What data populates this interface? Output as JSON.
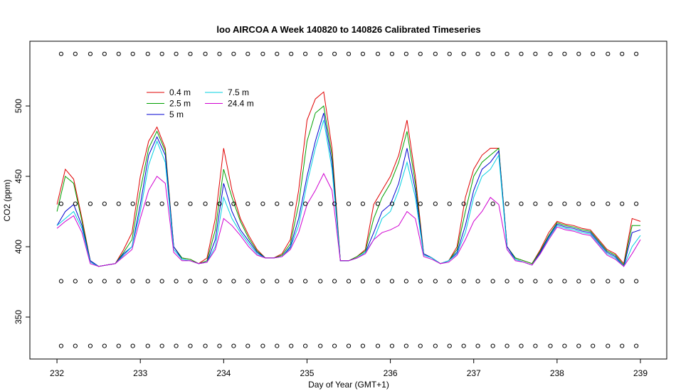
{
  "chart_data": {
    "type": "line",
    "title": "loo AIRCOA A  Week 140820 to 140826  Calibrated Timeseries",
    "x_label": "Day of Year (GMT+1)",
    "y_label": "CO2 (ppm)",
    "xlim": [
      231.675,
      239.316
    ],
    "ylim": [
      320.2,
      546
    ],
    "xticks": [
      232,
      233,
      234,
      235,
      236,
      237,
      238,
      239
    ],
    "yticks": [
      350,
      400,
      450,
      500
    ],
    "legend_ncol": 2,
    "x": [
      232.0,
      232.1,
      232.2,
      232.3,
      232.4,
      232.5,
      232.6,
      232.7,
      232.8,
      232.9,
      233.0,
      233.1,
      233.2,
      233.3,
      233.4,
      233.5,
      233.6,
      233.7,
      233.8,
      233.9,
      234.0,
      234.1,
      234.2,
      234.3,
      234.4,
      234.5,
      234.6,
      234.7,
      234.8,
      234.9,
      235.0,
      235.1,
      235.2,
      235.3,
      235.4,
      235.5,
      235.6,
      235.7,
      235.8,
      235.9,
      236.0,
      236.1,
      236.2,
      236.3,
      236.4,
      236.5,
      236.6,
      236.7,
      236.8,
      236.9,
      237.0,
      237.1,
      237.2,
      237.3,
      237.4,
      237.5,
      237.6,
      237.7,
      237.8,
      237.9,
      238.0,
      238.1,
      238.2,
      238.3,
      238.4,
      238.5,
      238.6,
      238.7,
      238.8,
      238.9,
      239.0
    ],
    "series": [
      {
        "name": "0.4 m",
        "color": "#e00000",
        "values": [
          430,
          455,
          448,
          420,
          390,
          386,
          387,
          388,
          398,
          410,
          450,
          475,
          485,
          470,
          400,
          392,
          391,
          388,
          392,
          420,
          470,
          440,
          420,
          408,
          398,
          392,
          392,
          395,
          405,
          440,
          490,
          505,
          510,
          470,
          390,
          390,
          393,
          398,
          430,
          440,
          450,
          465,
          490,
          450,
          395,
          392,
          388,
          390,
          400,
          435,
          455,
          465,
          470,
          470,
          400,
          392,
          390,
          388,
          398,
          410,
          418,
          416,
          415,
          413,
          412,
          405,
          398,
          395,
          388,
          420,
          418
        ]
      },
      {
        "name": "2.5 m",
        "color": "#00a000",
        "values": [
          425,
          450,
          445,
          418,
          390,
          386,
          387,
          388,
          396,
          405,
          440,
          470,
          482,
          468,
          400,
          392,
          391,
          388,
          390,
          412,
          455,
          435,
          418,
          406,
          397,
          392,
          392,
          394,
          402,
          430,
          475,
          495,
          500,
          465,
          390,
          390,
          393,
          397,
          420,
          435,
          445,
          460,
          482,
          445,
          395,
          392,
          388,
          390,
          398,
          425,
          450,
          460,
          465,
          470,
          400,
          392,
          390,
          388,
          397,
          408,
          417,
          415,
          414,
          412,
          411,
          404,
          397,
          394,
          387,
          415,
          415
        ]
      },
      {
        "name": "5 m",
        "color": "#0000d0",
        "values": [
          415,
          425,
          430,
          415,
          390,
          386,
          387,
          388,
          395,
          400,
          430,
          465,
          478,
          465,
          400,
          391,
          390,
          388,
          389,
          405,
          445,
          425,
          412,
          404,
          396,
          392,
          392,
          393,
          400,
          420,
          450,
          475,
          495,
          460,
          390,
          390,
          392,
          396,
          410,
          425,
          430,
          445,
          470,
          440,
          395,
          392,
          388,
          390,
          396,
          415,
          440,
          455,
          460,
          468,
          400,
          391,
          389,
          387,
          396,
          407,
          416,
          414,
          413,
          411,
          410,
          403,
          396,
          393,
          386,
          410,
          412
        ]
      },
      {
        "name": "7.5 m",
        "color": "#00d0e0",
        "values": [
          415,
          420,
          425,
          413,
          389,
          386,
          387,
          388,
          394,
          400,
          425,
          458,
          475,
          460,
          398,
          391,
          390,
          388,
          389,
          400,
          435,
          420,
          410,
          402,
          395,
          392,
          392,
          393,
          399,
          415,
          445,
          470,
          490,
          455,
          390,
          390,
          392,
          396,
          405,
          420,
          425,
          440,
          460,
          435,
          394,
          392,
          388,
          390,
          395,
          410,
          435,
          450,
          455,
          465,
          398,
          391,
          389,
          387,
          395,
          406,
          415,
          413,
          412,
          410,
          409,
          402,
          395,
          392,
          386,
          400,
          408
        ]
      },
      {
        "name": "24.4 m",
        "color": "#d000d0",
        "values": [
          413,
          418,
          422,
          410,
          388,
          386,
          387,
          388,
          393,
          398,
          420,
          440,
          450,
          445,
          396,
          390,
          390,
          388,
          389,
          398,
          420,
          415,
          408,
          400,
          394,
          392,
          392,
          393,
          398,
          410,
          430,
          440,
          452,
          440,
          390,
          390,
          392,
          395,
          405,
          410,
          412,
          415,
          425,
          420,
          393,
          391,
          388,
          389,
          394,
          405,
          418,
          425,
          435,
          430,
          398,
          390,
          389,
          387,
          395,
          405,
          414,
          412,
          411,
          409,
          408,
          401,
          394,
          391,
          386,
          395,
          405
        ]
      }
    ],
    "calibration": {
      "color": "#000000",
      "x": [
        232.05,
        232.22,
        232.4,
        232.57,
        232.74,
        232.91,
        233.09,
        233.26,
        233.43,
        233.6,
        233.78,
        233.95,
        234.12,
        234.29,
        234.47,
        234.64,
        234.81,
        234.98,
        235.16,
        235.33,
        235.5,
        235.67,
        235.85,
        236.02,
        236.19,
        236.36,
        236.54,
        236.71,
        236.88,
        237.05,
        237.23,
        237.4,
        237.57,
        237.74,
        237.92,
        238.09,
        238.26,
        238.43,
        238.61,
        238.78,
        238.95
      ],
      "rows": [
        {
          "values": [
            537,
            537,
            537,
            537,
            537,
            537,
            537,
            537,
            537,
            537,
            537,
            537,
            537,
            537,
            537,
            537,
            537,
            537,
            537,
            537,
            537,
            537,
            537,
            537,
            537,
            537,
            537,
            537,
            537,
            537,
            537,
            537,
            537,
            537,
            537,
            537,
            537,
            537,
            537,
            537,
            537
          ]
        },
        {
          "values": [
            430.5,
            430.5,
            430.5,
            430.5,
            430.5,
            430.5,
            430.5,
            430.5,
            430.5,
            430.5,
            430.5,
            430.5,
            430.5,
            430.5,
            430.5,
            430.5,
            430.5,
            430.5,
            430.5,
            430.5,
            430.5,
            430.5,
            430.5,
            430.5,
            430.5,
            430.5,
            430.5,
            430.5,
            430.5,
            430.5,
            430.5,
            430.5,
            430.5,
            430.5,
            430.5,
            430.5,
            430.5,
            430.5,
            430.5,
            430.5,
            430.5
          ]
        },
        {
          "values": [
            375.5,
            375.5,
            375.5,
            375.5,
            375.5,
            375.5,
            375.5,
            375.5,
            375.5,
            375.5,
            375.5,
            375.5,
            375.5,
            375.5,
            375.5,
            375.5,
            375.5,
            375.5,
            375.5,
            375.5,
            375.5,
            375.5,
            375.5,
            375.5,
            375.5,
            375.5,
            375.5,
            375.5,
            375.5,
            375.5,
            375.5,
            375.5,
            375.5,
            375.5,
            375.5,
            375.5,
            375.5,
            375.5,
            375.5,
            375.5,
            375.5
          ]
        },
        {
          "values": [
            329.5,
            329.5,
            329.5,
            329.5,
            329.5,
            329.5,
            329.5,
            329.5,
            329.5,
            329.5,
            329.5,
            329.5,
            329.5,
            329.5,
            329.5,
            329.5,
            329.5,
            329.5,
            329.5,
            329.5,
            329.5,
            329.5,
            329.5,
            329.5,
            329.5,
            329.5,
            329.5,
            329.5,
            329.5,
            329.5,
            329.5,
            329.5,
            329.5,
            329.5,
            329.5,
            329.5,
            329.5,
            329.5,
            329.5,
            329.5,
            329.5
          ]
        }
      ]
    }
  }
}
